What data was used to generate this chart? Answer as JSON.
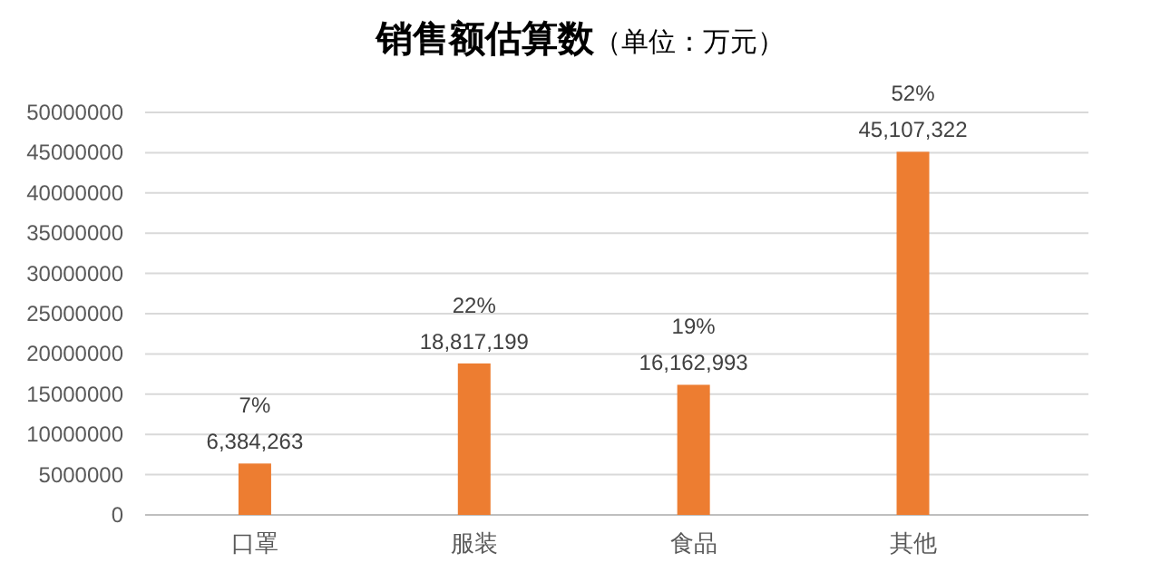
{
  "chart_data": {
    "type": "bar",
    "title": "销售额估算数",
    "subtitle": "（单位：万元）",
    "categories": [
      "口罩",
      "服装",
      "食品",
      "其他"
    ],
    "series": [
      {
        "color": "#ed7d31",
        "values": [
          6384263,
          18817199,
          16162993,
          45107322
        ],
        "value_labels": [
          "6,384,263",
          "18,817,199",
          "16,162,993",
          "45,107,322"
        ]
      }
    ],
    "annotations": [
      {
        "text": "7%",
        "x": "口罩",
        "y": 6384263
      },
      {
        "text": "22%",
        "x": "服装",
        "y": 18817199
      },
      {
        "text": "19%",
        "x": "食品",
        "y": 16162993
      },
      {
        "text": "52%",
        "x": "其他",
        "y": 45107322
      }
    ],
    "ylim": [
      0,
      50000000
    ],
    "yticks": [
      0,
      5000000,
      10000000,
      15000000,
      20000000,
      25000000,
      30000000,
      35000000,
      40000000,
      45000000,
      50000000
    ],
    "grid": "y"
  }
}
